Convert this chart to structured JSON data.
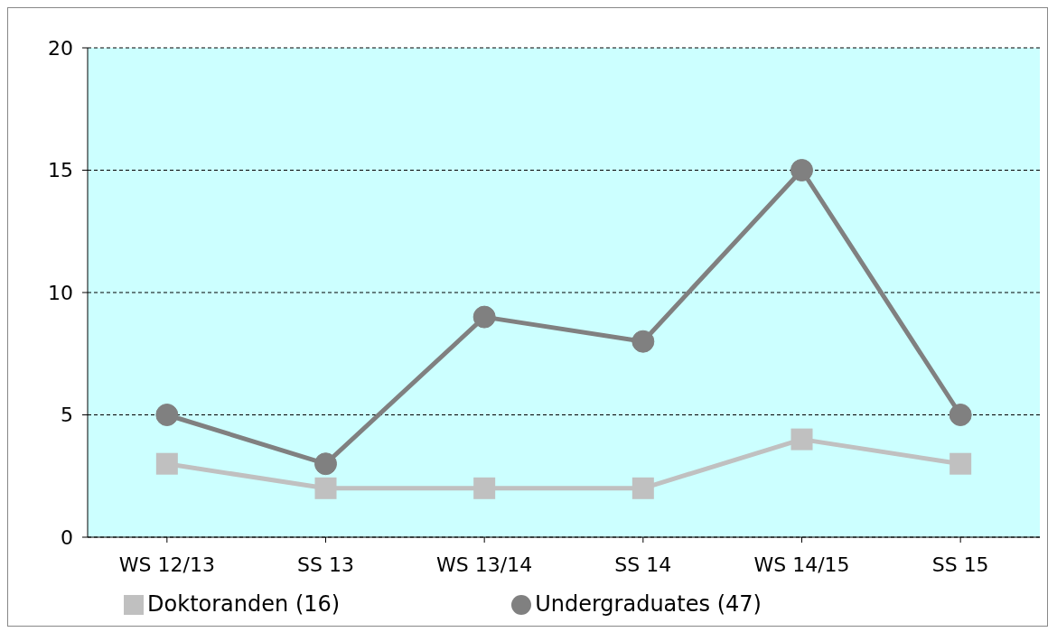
{
  "chart_data": {
    "type": "line",
    "categories": [
      "WS 12/13",
      "SS 13",
      "WS 13/14",
      "SS 14",
      "WS 14/15",
      "SS 15"
    ],
    "series": [
      {
        "name": "Undergraduates (47)",
        "color": "#808080",
        "marker": "circle",
        "values": [
          5,
          3,
          9,
          8,
          15,
          5
        ]
      },
      {
        "name": "Doktoranden (16)",
        "color": "#c0c0c0",
        "marker": "square",
        "values": [
          3,
          2,
          2,
          2,
          4,
          3
        ]
      }
    ],
    "ylim": [
      0,
      20
    ],
    "yticks": [
      0,
      5,
      10,
      15,
      20
    ],
    "grid": "y",
    "legend": "bottom",
    "line_style": "solid"
  }
}
